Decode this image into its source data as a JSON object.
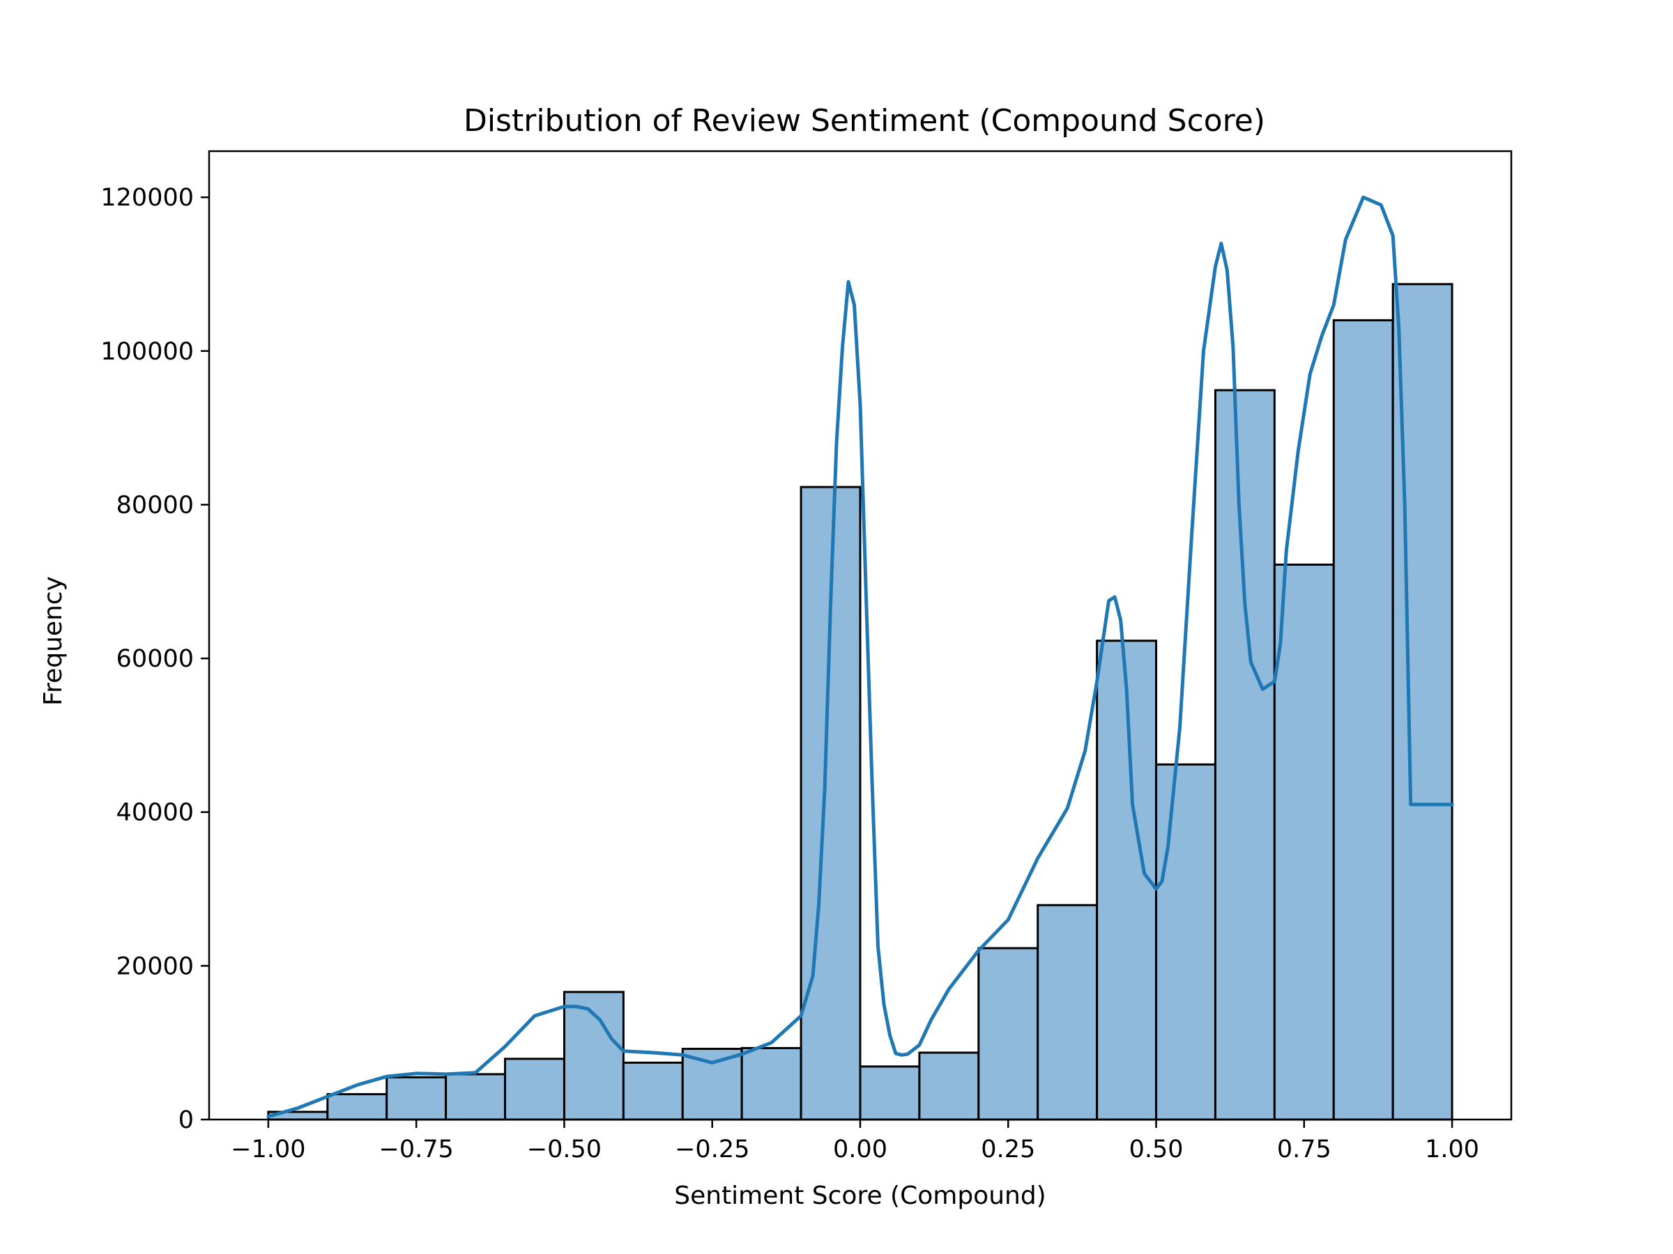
{
  "chart_data": {
    "type": "bar",
    "title": "Distribution of Review Sentiment (Compound Score)",
    "xlabel": "Sentiment Score (Compound)",
    "ylabel": "Frequency",
    "xlim": [
      -1.1,
      1.1
    ],
    "ylim": [
      0,
      126000
    ],
    "grid": false,
    "x_ticks": [
      -1.0,
      -0.75,
      -0.5,
      -0.25,
      0.0,
      0.25,
      0.5,
      0.75,
      1.0
    ],
    "x_tick_labels": [
      "−1.00",
      "−0.75",
      "−0.50",
      "−0.25",
      "0.00",
      "0.25",
      "0.50",
      "0.75",
      "1.00"
    ],
    "y_ticks": [
      0,
      20000,
      40000,
      60000,
      80000,
      100000,
      120000
    ],
    "y_tick_labels": [
      "0",
      "20000",
      "40000",
      "60000",
      "80000",
      "100000",
      "120000"
    ],
    "bin_edges": [
      -1.0,
      -0.9,
      -0.8,
      -0.7,
      -0.6,
      -0.5,
      -0.4,
      -0.3,
      -0.2,
      -0.1,
      0.0,
      0.1,
      0.2,
      0.3,
      0.4,
      0.5,
      0.6,
      0.7,
      0.8,
      0.9,
      1.0
    ],
    "values": [
      1000,
      3300,
      5500,
      5900,
      7900,
      16600,
      7400,
      9200,
      9300,
      82300,
      6900,
      8700,
      22300,
      27900,
      62300,
      46200,
      94900,
      72200,
      104000,
      108700
    ],
    "kde": {
      "x": [
        -1.0,
        -0.95,
        -0.9,
        -0.85,
        -0.8,
        -0.75,
        -0.7,
        -0.65,
        -0.6,
        -0.55,
        -0.5,
        -0.48,
        -0.46,
        -0.44,
        -0.42,
        -0.4,
        -0.35,
        -0.3,
        -0.25,
        -0.2,
        -0.15,
        -0.1,
        -0.08,
        -0.07,
        -0.06,
        -0.05,
        -0.04,
        -0.03,
        -0.02,
        -0.01,
        0.0,
        0.01,
        0.02,
        0.03,
        0.04,
        0.05,
        0.06,
        0.07,
        0.08,
        0.1,
        0.12,
        0.15,
        0.2,
        0.25,
        0.3,
        0.35,
        0.38,
        0.4,
        0.42,
        0.43,
        0.44,
        0.45,
        0.46,
        0.48,
        0.5,
        0.51,
        0.52,
        0.54,
        0.56,
        0.58,
        0.6,
        0.61,
        0.62,
        0.63,
        0.64,
        0.65,
        0.66,
        0.68,
        0.7,
        0.71,
        0.72,
        0.74,
        0.76,
        0.78,
        0.8,
        0.82,
        0.85,
        0.88,
        0.9,
        0.91,
        0.92,
        0.93,
        0.94,
        0.96,
        0.98,
        1.0
      ],
      "y": [
        400,
        1500,
        3000,
        4500,
        5600,
        6000,
        5900,
        6100,
        9500,
        13500,
        14700,
        14700,
        14400,
        13000,
        10500,
        8900,
        8700,
        8400,
        7400,
        8500,
        10000,
        13500,
        18700,
        28000,
        43000,
        67000,
        88000,
        100500,
        109000,
        106000,
        93000,
        68000,
        44000,
        22500,
        15000,
        11000,
        8600,
        8400,
        8500,
        9700,
        13000,
        17000,
        22000,
        26000,
        34000,
        40500,
        48000,
        57000,
        67500,
        68000,
        65000,
        56000,
        41000,
        32000,
        30000,
        31000,
        35500,
        51000,
        76000,
        100000,
        111000,
        114000,
        110500,
        100500,
        80000,
        67000,
        59500,
        56000,
        57000,
        62000,
        74000,
        87000,
        97000,
        102000,
        106000,
        114500,
        120000,
        119000,
        115000,
        103000,
        80000,
        41000,
        41000,
        41000,
        41000,
        41000
      ],
      "color": "#1f77b4"
    },
    "bar_fill": "#8fbadb",
    "bar_edge": "#000000"
  }
}
